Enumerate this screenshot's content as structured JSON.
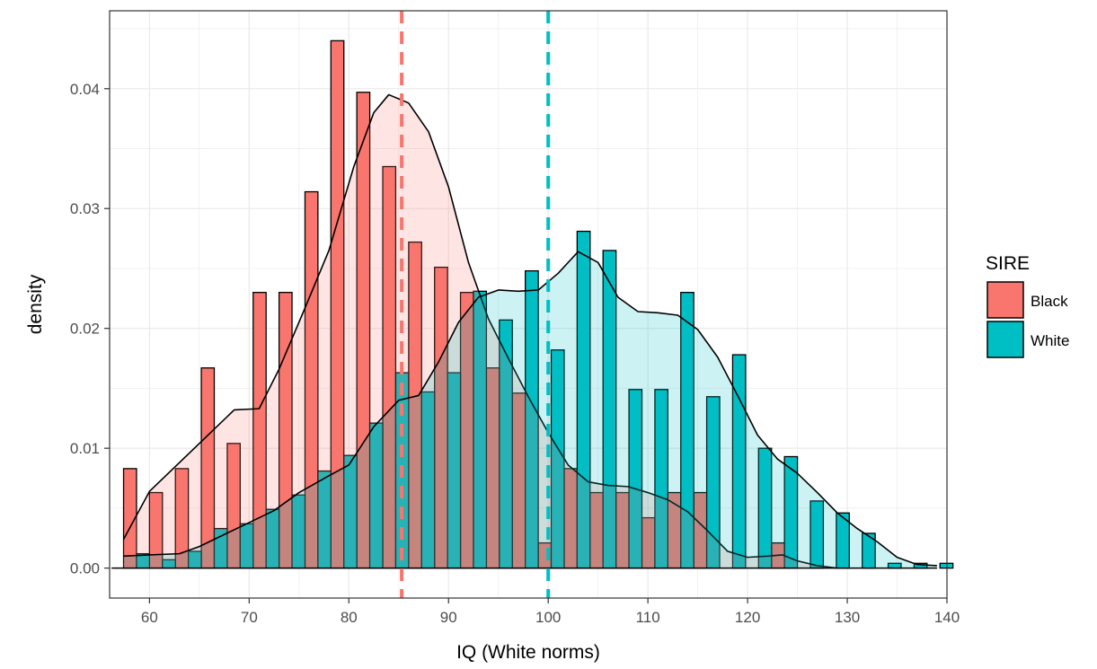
{
  "chart_data": {
    "type": "bar",
    "title": "",
    "xlabel": "IQ (White norms)",
    "ylabel": "density",
    "xlim": [
      56,
      140
    ],
    "ylim": [
      -0.0025,
      0.0465
    ],
    "x_ticks": [
      "60",
      "70",
      "80",
      "90",
      "100",
      "110",
      "120",
      "130",
      "140"
    ],
    "y_ticks": [
      "0.00",
      "0.01",
      "0.02",
      "0.03",
      "0.04"
    ],
    "grid": true,
    "legend": {
      "title": "SIRE",
      "position": "right"
    },
    "bin_centers": [
      58.7,
      61.3,
      63.9,
      66.5,
      69.1,
      71.7,
      74.3,
      76.9,
      79.5,
      82.1,
      84.7,
      87.3,
      89.9,
      92.5,
      95.1,
      97.7,
      100.3,
      102.9,
      105.5,
      108.1,
      110.7,
      113.3,
      115.9,
      118.5,
      121.1,
      123.7,
      126.3,
      128.9,
      131.5,
      134.1,
      136.7,
      139.3
    ],
    "series": [
      {
        "name": "Black",
        "color": "#F8766D",
        "mean": 85.3,
        "values": [
          0.0083,
          0.0063,
          0.0083,
          0.0167,
          0.0104,
          0.023,
          0.023,
          0.0314,
          0.044,
          0.0397,
          0.0335,
          0.0272,
          0.0251,
          0.023,
          0.0167,
          0.0146,
          0.0021,
          0.0083,
          0.0063,
          0.0063,
          0.0042,
          0.0063,
          0.0063,
          0.0,
          0.0,
          0.0021,
          0.0,
          0.0,
          0.0,
          0.0,
          0.0,
          0.0
        ],
        "density": [
          [
            57.4,
            0.0024
          ],
          [
            60,
            0.0064
          ],
          [
            63,
            0.0088
          ],
          [
            66,
            0.0112
          ],
          [
            68.5,
            0.0132
          ],
          [
            71,
            0.0133
          ],
          [
            73,
            0.0166
          ],
          [
            75.5,
            0.0215
          ],
          [
            78,
            0.0265
          ],
          [
            80.5,
            0.0335
          ],
          [
            82.5,
            0.038
          ],
          [
            84,
            0.0395
          ],
          [
            86,
            0.0388
          ],
          [
            88,
            0.0364
          ],
          [
            90,
            0.0318
          ],
          [
            92,
            0.0255
          ],
          [
            94,
            0.0208
          ],
          [
            96,
            0.0175
          ],
          [
            98,
            0.0143
          ],
          [
            100,
            0.0113
          ],
          [
            102,
            0.0086
          ],
          [
            104,
            0.0072
          ],
          [
            106,
            0.0069
          ],
          [
            108,
            0.0068
          ],
          [
            110,
            0.0063
          ],
          [
            112,
            0.0057
          ],
          [
            114,
            0.0047
          ],
          [
            116,
            0.0031
          ],
          [
            118,
            0.0014
          ],
          [
            120,
            0.0009
          ],
          [
            122,
            0.001
          ],
          [
            123.5,
            0.0011
          ],
          [
            125,
            0.0006
          ],
          [
            127,
            0.0002
          ],
          [
            129,
            0.0
          ]
        ]
      },
      {
        "name": "White",
        "color": "#00BFC4",
        "mean": 100,
        "values": [
          0.0012,
          0.0007,
          0.0014,
          0.0033,
          0.0037,
          0.0049,
          0.0061,
          0.0081,
          0.0094,
          0.0121,
          0.0163,
          0.0147,
          0.0163,
          0.0231,
          0.0207,
          0.0248,
          0.0182,
          0.0281,
          0.0265,
          0.0149,
          0.0149,
          0.023,
          0.0143,
          0.0178,
          0.01,
          0.0093,
          0.0056,
          0.0046,
          0.0029,
          0.0004,
          0.0004,
          0.0004
        ],
        "density": [
          [
            57.4,
            0.001
          ],
          [
            60,
            0.0011
          ],
          [
            63,
            0.0012
          ],
          [
            65,
            0.0018
          ],
          [
            67.5,
            0.0028
          ],
          [
            70,
            0.0038
          ],
          [
            72.5,
            0.0048
          ],
          [
            75,
            0.0063
          ],
          [
            78,
            0.0077
          ],
          [
            80,
            0.0086
          ],
          [
            82.5,
            0.0118
          ],
          [
            85,
            0.014
          ],
          [
            87,
            0.0144
          ],
          [
            89,
            0.0172
          ],
          [
            91,
            0.0205
          ],
          [
            93,
            0.0226
          ],
          [
            95,
            0.0232
          ],
          [
            97,
            0.0231
          ],
          [
            99,
            0.0232
          ],
          [
            101,
            0.0246
          ],
          [
            103,
            0.0264
          ],
          [
            105,
            0.0255
          ],
          [
            107,
            0.0226
          ],
          [
            109,
            0.0214
          ],
          [
            111,
            0.0213
          ],
          [
            113,
            0.0211
          ],
          [
            115,
            0.0199
          ],
          [
            117,
            0.0176
          ],
          [
            119,
            0.0144
          ],
          [
            121,
            0.0111
          ],
          [
            123,
            0.0091
          ],
          [
            125,
            0.0079
          ],
          [
            127,
            0.0063
          ],
          [
            129,
            0.0046
          ],
          [
            131,
            0.0033
          ],
          [
            133,
            0.0022
          ],
          [
            135,
            0.0009
          ],
          [
            137,
            0.0003
          ],
          [
            139,
            0.0002
          ]
        ]
      }
    ]
  }
}
